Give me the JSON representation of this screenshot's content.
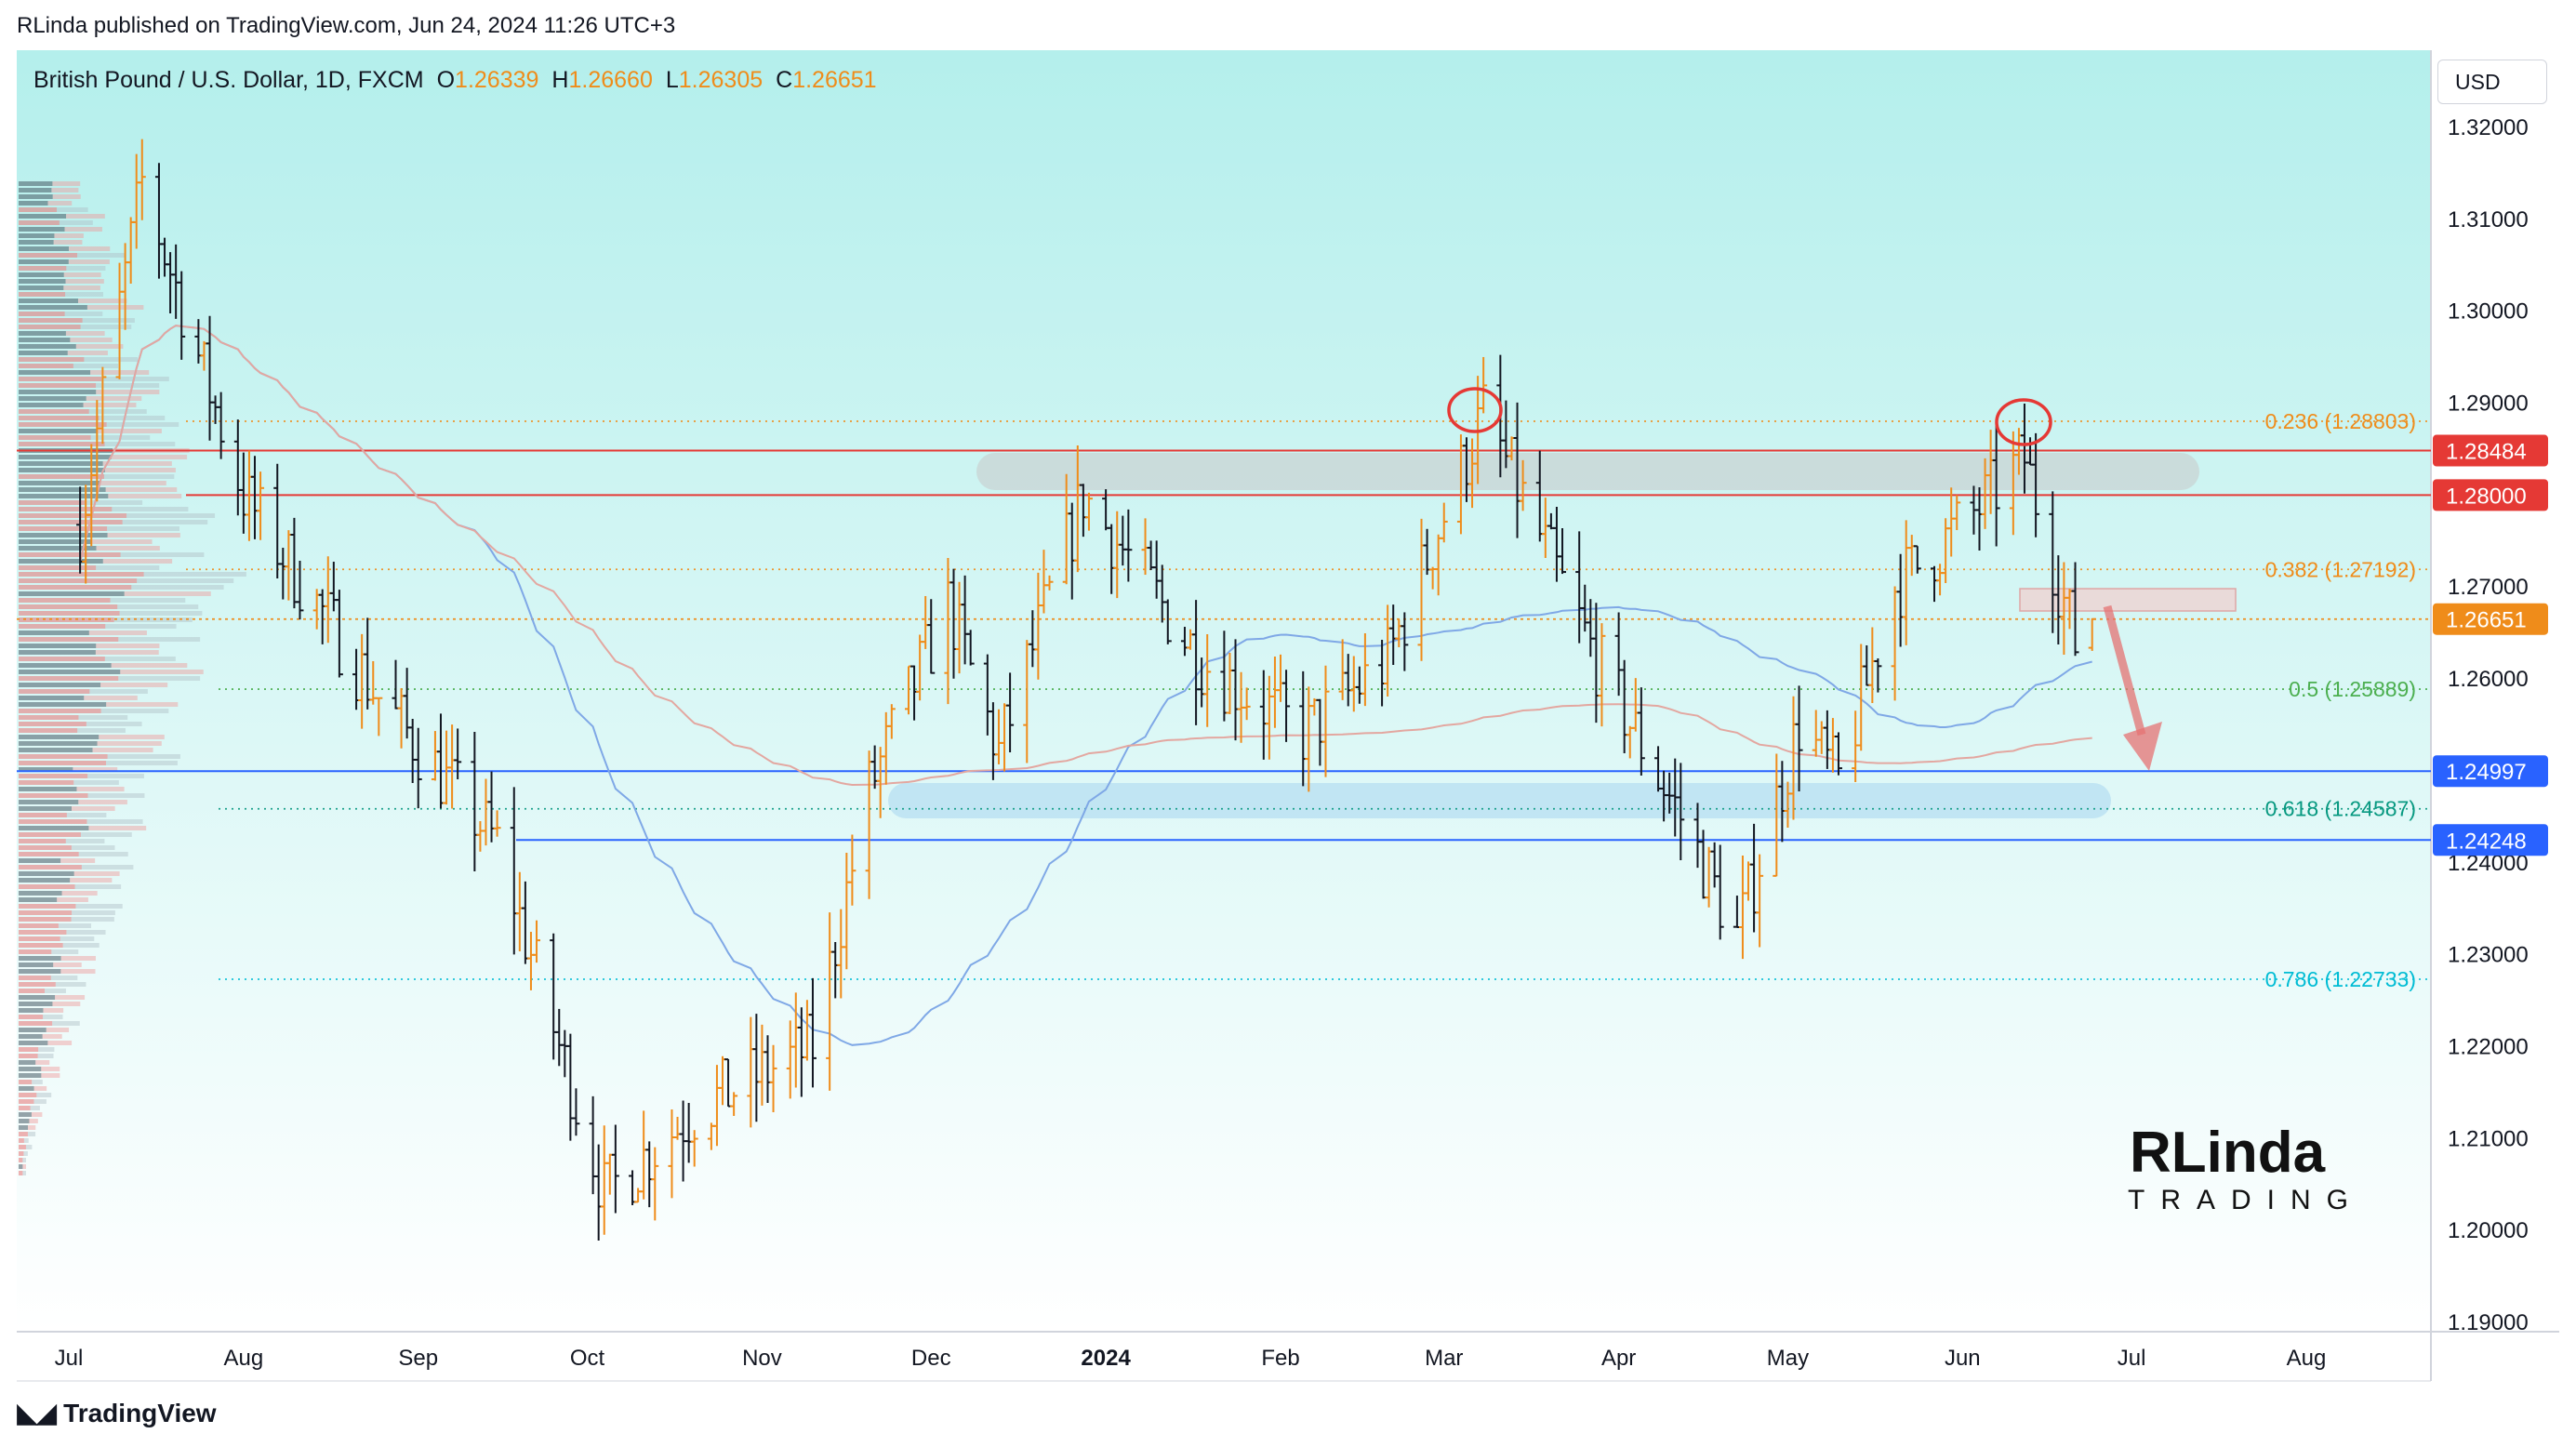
{
  "header": {
    "published_by": "RLinda published on TradingView.com, Jun 24, 2024 11:26 UTC+3"
  },
  "symbol": {
    "name": "British Pound / U.S. Dollar, 1D, FXCM",
    "open_label": "O",
    "open": "1.26339",
    "high_label": "H",
    "high": "1.26660",
    "low_label": "L",
    "low": "1.26305",
    "close_label": "C",
    "close": "1.26651"
  },
  "currency_button": "USD",
  "footer": {
    "brand": "TradingView"
  },
  "watermark": {
    "line1": "RLinda",
    "line2": "TRADING"
  },
  "colors": {
    "background": "#b7f0ec",
    "bull": "#ef8c1a",
    "bear": "#131722",
    "red_level": "#e53935",
    "blue_level": "#2962ff",
    "ma_fast": "#7fa8e6",
    "ma_slow": "#e3a7a0"
  },
  "chart_data": {
    "type": "candlestick",
    "y_range": [
      1.185,
      1.325
    ],
    "y_ticks": [
      "1.32000",
      "1.31000",
      "1.30000",
      "1.29000",
      "1.27000",
      "1.26000",
      "1.24000",
      "1.23000",
      "1.22000",
      "1.21000",
      "1.20000",
      "1.19000"
    ],
    "x_labels": [
      {
        "label": "Jul",
        "date": "2023-07-01"
      },
      {
        "label": "Aug",
        "date": "2023-08-01"
      },
      {
        "label": "Sep",
        "date": "2023-09-01"
      },
      {
        "label": "Oct",
        "date": "2023-10-01"
      },
      {
        "label": "Nov",
        "date": "2023-11-01"
      },
      {
        "label": "Dec",
        "date": "2023-12-01"
      },
      {
        "label": "2024",
        "date": "2024-01-01"
      },
      {
        "label": "Feb",
        "date": "2024-02-01"
      },
      {
        "label": "Mar",
        "date": "2024-03-01"
      },
      {
        "label": "Apr",
        "date": "2024-04-01"
      },
      {
        "label": "May",
        "date": "2024-05-01"
      },
      {
        "label": "Jun",
        "date": "2024-06-01"
      },
      {
        "label": "Jul",
        "date": "2024-07-01"
      },
      {
        "label": "Aug",
        "date": "2024-08-01"
      }
    ],
    "price_levels": [
      {
        "value": 1.28484,
        "label": "1.28484",
        "color": "#e53935"
      },
      {
        "value": 1.28,
        "label": "1.28000",
        "color": "#e53935"
      },
      {
        "value": 1.26651,
        "label": "1.26651",
        "color": "#ef8c1a"
      },
      {
        "value": 1.24997,
        "label": "1.24997",
        "color": "#2962ff"
      },
      {
        "value": 1.24248,
        "label": "1.24248",
        "color": "#2962ff"
      }
    ],
    "fibonacci": [
      {
        "value": 1.28803,
        "label": "0.236 (1.28803)",
        "color": "#ef8c1a"
      },
      {
        "value": 1.27192,
        "label": "0.382 (1.27192)",
        "color": "#ef8c1a"
      },
      {
        "value": 1.25889,
        "label": "0.5 (1.25889)",
        "color": "#4caf50"
      },
      {
        "value": 1.24587,
        "label": "0.618 (1.24587)",
        "color": "#089981"
      },
      {
        "value": 1.22733,
        "label": "0.786 (1.22733)",
        "color": "#00bcd4"
      }
    ],
    "key_points": [
      {
        "date": "2023-07-01",
        "price": 1.27
      },
      {
        "date": "2023-07-14",
        "price": 1.314
      },
      {
        "date": "2023-08-01",
        "price": 1.28
      },
      {
        "date": "2023-08-25",
        "price": 1.258
      },
      {
        "date": "2023-09-15",
        "price": 1.242
      },
      {
        "date": "2023-10-04",
        "price": 1.204
      },
      {
        "date": "2023-10-20",
        "price": 1.213
      },
      {
        "date": "2023-11-10",
        "price": 1.22
      },
      {
        "date": "2023-11-20",
        "price": 1.248
      },
      {
        "date": "2023-12-04",
        "price": 1.268
      },
      {
        "date": "2023-12-13",
        "price": 1.252
      },
      {
        "date": "2023-12-28",
        "price": 1.28
      },
      {
        "date": "2024-01-18",
        "price": 1.262
      },
      {
        "date": "2024-02-05",
        "price": 1.254
      },
      {
        "date": "2024-02-20",
        "price": 1.262
      },
      {
        "date": "2024-03-08",
        "price": 1.289
      },
      {
        "date": "2024-03-28",
        "price": 1.262
      },
      {
        "date": "2024-04-12",
        "price": 1.245
      },
      {
        "date": "2024-04-22",
        "price": 1.232
      },
      {
        "date": "2024-05-03",
        "price": 1.255
      },
      {
        "date": "2024-05-10",
        "price": 1.249
      },
      {
        "date": "2024-05-20",
        "price": 1.27
      },
      {
        "date": "2024-06-03",
        "price": 1.278
      },
      {
        "date": "2024-06-12",
        "price": 1.284
      },
      {
        "date": "2024-06-21",
        "price": 1.264
      },
      {
        "date": "2024-06-24",
        "price": 1.2665
      }
    ]
  }
}
